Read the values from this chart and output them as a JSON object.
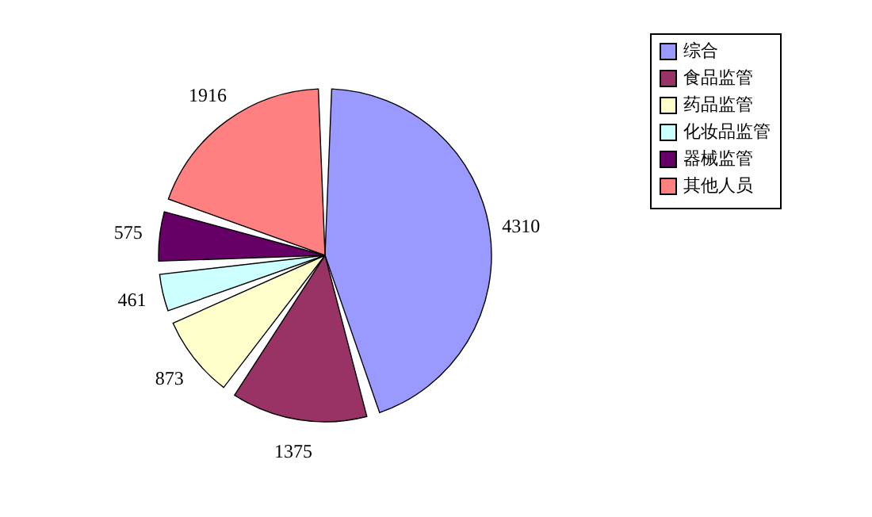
{
  "chart_data": {
    "type": "pie",
    "categories": [
      "综合",
      "食品监管",
      "药品监管",
      "化妆品监管",
      "器械监管",
      "其他人员"
    ],
    "values": [
      4310,
      1375,
      873,
      461,
      575,
      1916
    ],
    "colors": [
      "#9999ff",
      "#993366",
      "#ffffcc",
      "#ccffff",
      "#660066",
      "#ff8080"
    ],
    "data_labels": true,
    "legend": "right"
  }
}
